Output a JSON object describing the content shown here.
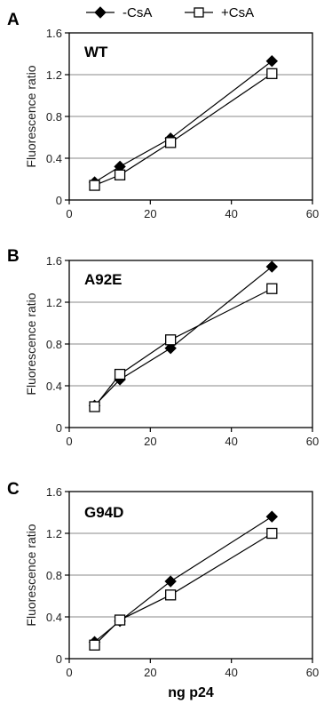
{
  "legend": {
    "items": [
      {
        "label": "-CsA",
        "marker": "diamond-filled"
      },
      {
        "label": "+CsA",
        "marker": "square-open"
      }
    ]
  },
  "x_axis_label": "ng p24",
  "chart_data": [
    {
      "type": "line",
      "panel": "A",
      "annotation": "WT",
      "ylabel": "Fluorescence ratio",
      "xlabel": "",
      "xlim": [
        0,
        60
      ],
      "ylim": [
        0,
        1.6
      ],
      "xticks": [
        0,
        20,
        40,
        60
      ],
      "yticks": [
        0,
        0.4,
        0.8,
        1.2,
        1.6
      ],
      "grid": "horizontal",
      "x": [
        6.25,
        12.5,
        25,
        50
      ],
      "series": [
        {
          "name": "-CsA",
          "values": [
            0.17,
            0.32,
            0.59,
            1.33
          ]
        },
        {
          "name": "+CsA",
          "values": [
            0.14,
            0.24,
            0.55,
            1.21
          ]
        }
      ]
    },
    {
      "type": "line",
      "panel": "B",
      "annotation": "A92E",
      "ylabel": "Fluorescence ratio",
      "xlabel": "",
      "xlim": [
        0,
        60
      ],
      "ylim": [
        0,
        1.6
      ],
      "xticks": [
        0,
        20,
        40,
        60
      ],
      "yticks": [
        0,
        0.4,
        0.8,
        1.2,
        1.6
      ],
      "grid": "horizontal",
      "x": [
        6.25,
        12.5,
        25,
        50
      ],
      "series": [
        {
          "name": "-CsA",
          "values": [
            0.21,
            0.46,
            0.76,
            1.54
          ]
        },
        {
          "name": "+CsA",
          "values": [
            0.2,
            0.51,
            0.84,
            1.33
          ]
        }
      ]
    },
    {
      "type": "line",
      "panel": "C",
      "annotation": "G94D",
      "ylabel": "Fluorescence ratio",
      "xlabel": "ng p24",
      "xlim": [
        0,
        60
      ],
      "ylim": [
        0,
        1.6
      ],
      "xticks": [
        0,
        20,
        40,
        60
      ],
      "yticks": [
        0,
        0.4,
        0.8,
        1.2,
        1.6
      ],
      "grid": "horizontal",
      "x": [
        6.25,
        12.5,
        25,
        50
      ],
      "series": [
        {
          "name": "-CsA",
          "values": [
            0.16,
            0.36,
            0.74,
            1.36
          ]
        },
        {
          "name": "+CsA",
          "values": [
            0.13,
            0.37,
            0.61,
            1.2
          ]
        }
      ]
    }
  ]
}
